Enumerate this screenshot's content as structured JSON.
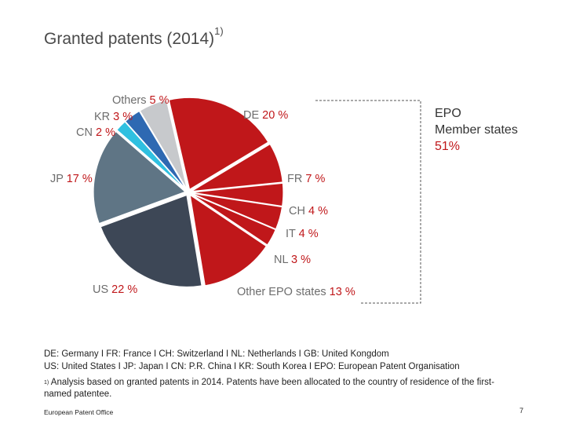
{
  "header": {
    "title": "Granted patents (2014)",
    "title_superscript": "1)"
  },
  "chart_data": {
    "type": "pie",
    "slices": [
      {
        "name": "DE",
        "value": 20,
        "pct_label": "20 %",
        "color": "#c0171a"
      },
      {
        "name": "FR",
        "value": 7,
        "pct_label": "7 %",
        "color": "#c0171a"
      },
      {
        "name": "CH",
        "value": 4,
        "pct_label": "4 %",
        "color": "#c0171a"
      },
      {
        "name": "IT",
        "value": 4,
        "pct_label": "4 %",
        "color": "#c0171a"
      },
      {
        "name": "NL",
        "value": 3,
        "pct_label": "3 %",
        "color": "#c0171a"
      },
      {
        "name": "Other EPO states",
        "value": 13,
        "pct_label": "13 %",
        "color": "#c0171a"
      },
      {
        "name": "US",
        "value": 22,
        "pct_label": "22 %",
        "color": "#3d4756"
      },
      {
        "name": "JP",
        "value": 17,
        "pct_label": "17 %",
        "color": "#5f7585"
      },
      {
        "name": "CN",
        "value": 2,
        "pct_label": "2 %",
        "color": "#2fc0e0"
      },
      {
        "name": "KR",
        "value": 3,
        "pct_label": "3 %",
        "color": "#2e69b2"
      },
      {
        "name": "Others",
        "value": 5,
        "pct_label": "5 %",
        "color": "#c7c9cc"
      }
    ],
    "group": {
      "label_line1": "EPO",
      "label_line2": "Member states",
      "value_label": "51%"
    }
  },
  "legend_text": {
    "line1": "DE: Germany  I  FR: France  I  CH: Switzerland  I  NL: Netherlands  I  GB: United Kongdom",
    "line2": "US: United States  I  JP: Japan  I  CN: P.R. China  I  KR: South Korea I EPO: European Patent Organisation"
  },
  "footnote": {
    "marker": "1)",
    "text": " Analysis based on granted patents in 2014. Patents have been allocated to the country of residence of the first-named patentee."
  },
  "footer": {
    "org": "European Patent Office",
    "page": "7"
  },
  "colors": {
    "epo_red": "#c0171a",
    "label_grey": "#6d6d6d"
  }
}
